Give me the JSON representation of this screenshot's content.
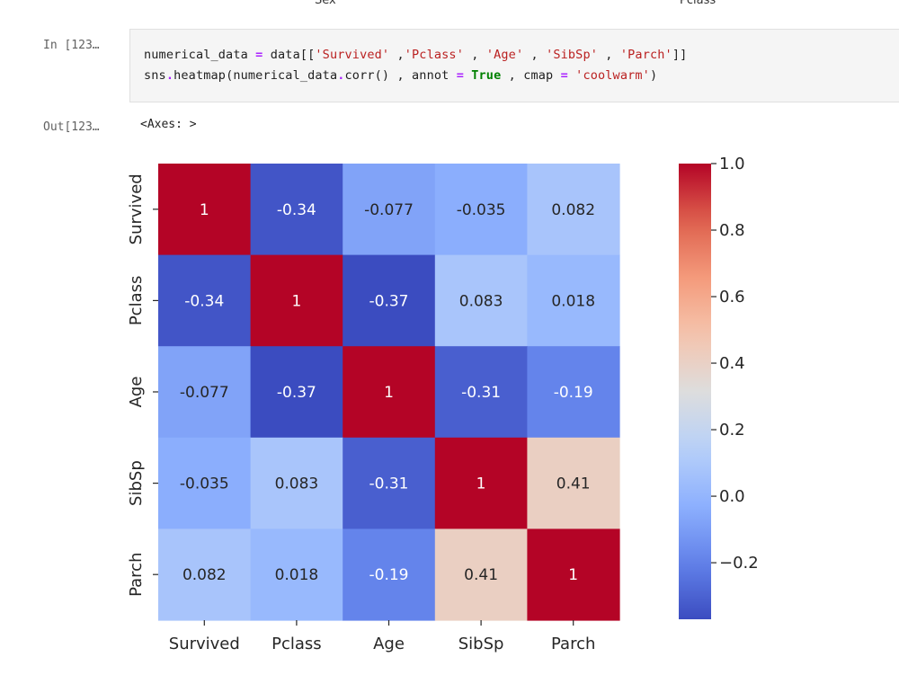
{
  "top_labels": [
    "Sex",
    "Pclass"
  ],
  "cell_input": {
    "prompt": "In [123…",
    "code": {
      "line1": {
        "var": "numerical_data",
        "assign": "=",
        "prefix": "data[[",
        "s1": "'Survived'",
        "sep1": " ,",
        "s2": "'Pclass'",
        "sep2": " , ",
        "s3": "'Age'",
        "sep3": " , ",
        "s4": "'SibSp'",
        "sep4": " , ",
        "s5": "'Parch'",
        "suffix": "]]"
      },
      "line2": {
        "prefix": "sns",
        "dot": ".",
        "call": "heatmap(numerical_data",
        "dot2": ".",
        "call2": "corr() , annot ",
        "eq1": "=",
        "true_kw": "True",
        "mid": " , cmap ",
        "eq2": "=",
        "cmap_str": "'coolwarm'",
        "suffix": ")"
      }
    }
  },
  "cell_output": {
    "prompt": "Out[123…",
    "text": "<Axes: >"
  },
  "chart_data": {
    "type": "heatmap",
    "colormap": "coolwarm",
    "x_labels": [
      "Survived",
      "Pclass",
      "Age",
      "SibSp",
      "Parch"
    ],
    "y_labels": [
      "Survived",
      "Pclass",
      "Age",
      "SibSp",
      "Parch"
    ],
    "values": [
      [
        1,
        -0.34,
        -0.077,
        -0.035,
        0.082
      ],
      [
        -0.34,
        1,
        -0.37,
        0.083,
        0.018
      ],
      [
        -0.077,
        -0.37,
        1,
        -0.31,
        -0.19
      ],
      [
        -0.035,
        0.083,
        -0.31,
        1,
        0.41
      ],
      [
        0.082,
        0.018,
        -0.19,
        0.41,
        1
      ]
    ],
    "annotations": [
      [
        "1",
        "-0.34",
        "-0.077",
        "-0.035",
        "0.082"
      ],
      [
        "-0.34",
        "1",
        "-0.37",
        "0.083",
        "0.018"
      ],
      [
        "-0.077",
        "-0.37",
        "1",
        "-0.31",
        "-0.19"
      ],
      [
        "-0.035",
        "0.083",
        "-0.31",
        "1",
        "0.41"
      ],
      [
        "0.082",
        "0.018",
        "-0.19",
        "0.41",
        "1"
      ]
    ],
    "colorbar": {
      "vmin": -0.37,
      "vmax": 1.0,
      "ticks": [
        1.0,
        0.8,
        0.6,
        0.4,
        0.2,
        0.0,
        -0.2
      ],
      "tick_labels": [
        "1.0",
        "0.8",
        "0.6",
        "0.4",
        "0.2",
        "0.0",
        "−0.2"
      ]
    }
  }
}
